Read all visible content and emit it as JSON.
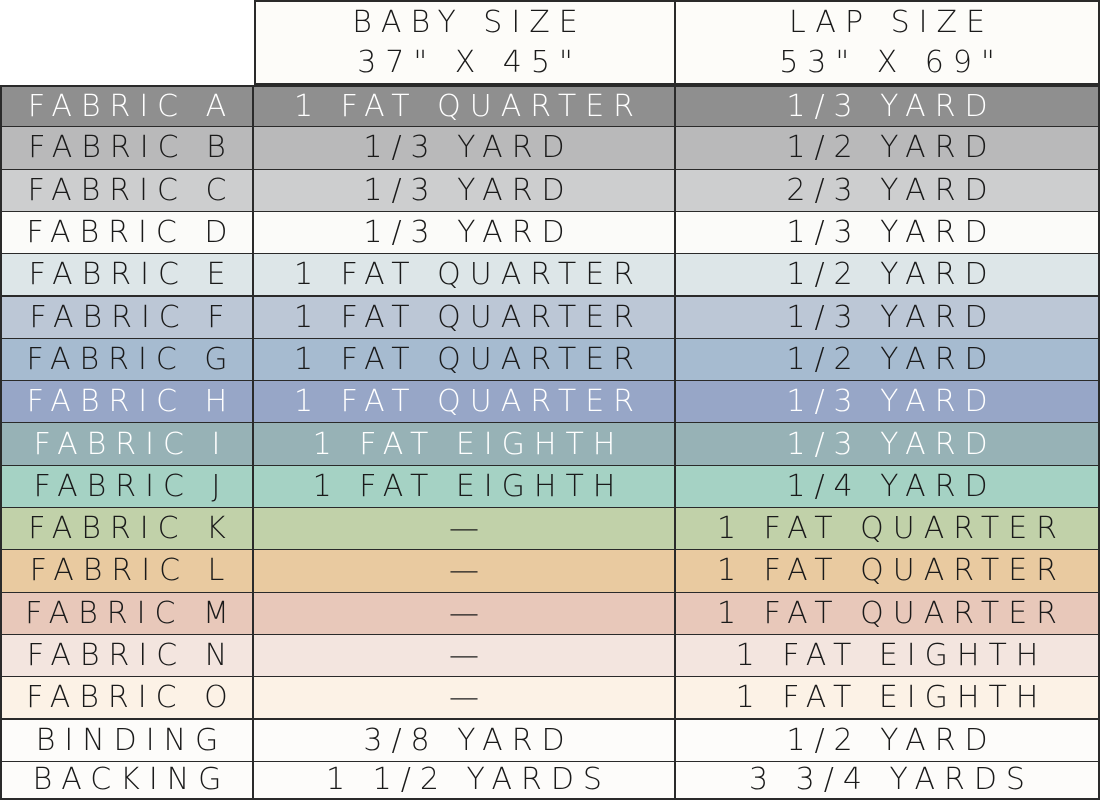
{
  "columns": [
    {
      "size": "BABY SIZE",
      "dimensions": "37\" X 45\""
    },
    {
      "size": "LAP SIZE",
      "dimensions": "53\" X 69\""
    }
  ],
  "rows": [
    {
      "label": "FABRIC A",
      "baby": "1 FAT QUARTER",
      "lap": "1/3 YARD",
      "color": "#8f8f8f",
      "text": "light"
    },
    {
      "label": "FABRIC B",
      "baby": "1/3 YARD",
      "lap": "1/2 YARD",
      "color": "#b9b9ba",
      "text": "dark"
    },
    {
      "label": "FABRIC C",
      "baby": "1/3 YARD",
      "lap": "2/3 YARD",
      "color": "#cdcecf",
      "text": "dark"
    },
    {
      "label": "FABRIC D",
      "baby": "1/3 YARD",
      "lap": "1/3 YARD",
      "color": "#fbfbf9",
      "text": "dark"
    },
    {
      "label": "FABRIC E",
      "baby": "1 FAT QUARTER",
      "lap": "1/2 YARD",
      "color": "#dde6e8",
      "text": "dark"
    },
    {
      "label": "FABRIC F",
      "baby": "1 FAT QUARTER",
      "lap": "1/3 YARD",
      "color": "#bcc7d6",
      "text": "dark"
    },
    {
      "label": "FABRIC G",
      "baby": "1 FAT QUARTER",
      "lap": "1/2 YARD",
      "color": "#a6bbd0",
      "text": "dark"
    },
    {
      "label": "FABRIC H",
      "baby": "1 FAT QUARTER",
      "lap": "1/3 YARD",
      "color": "#97a6c7",
      "text": "light"
    },
    {
      "label": "FABRIC I",
      "baby": "1 FAT EIGHTH",
      "lap": "1/3 YARD",
      "color": "#97b2b6",
      "text": "light"
    },
    {
      "label": "FABRIC J",
      "baby": "1 FAT EIGHTH",
      "lap": "1/4 YARD",
      "color": "#a5d2c4",
      "text": "dark"
    },
    {
      "label": "FABRIC K",
      "baby": "—",
      "lap": "1 FAT QUARTER",
      "color": "#c1d1a9",
      "text": "dark"
    },
    {
      "label": "FABRIC L",
      "baby": "—",
      "lap": "1 FAT QUARTER",
      "color": "#e9caa0",
      "text": "dark"
    },
    {
      "label": "FABRIC M",
      "baby": "—",
      "lap": "1 FAT QUARTER",
      "color": "#e8c8ba",
      "text": "dark"
    },
    {
      "label": "FABRIC N",
      "baby": "—",
      "lap": "1 FAT EIGHTH",
      "color": "#f3e5df",
      "text": "dark"
    },
    {
      "label": "FABRIC O",
      "baby": "—",
      "lap": "1 FAT EIGHTH",
      "color": "#fcf2e6",
      "text": "dark"
    },
    {
      "label": "BINDING",
      "baby": "3/8 YARD",
      "lap": "1/2 YARD",
      "color": "#fdfcfa",
      "text": "dark"
    },
    {
      "label": "BACKING",
      "baby": "1 1/2 YARDS",
      "lap": "3 3/4 YARDS",
      "color": "#fdfcfa",
      "text": "dark"
    }
  ],
  "colors": {
    "header_background": "#fdfcf9",
    "border": "#2a2a2a",
    "dark_text": "#1a1a1a",
    "light_text": "#ffffff"
  }
}
